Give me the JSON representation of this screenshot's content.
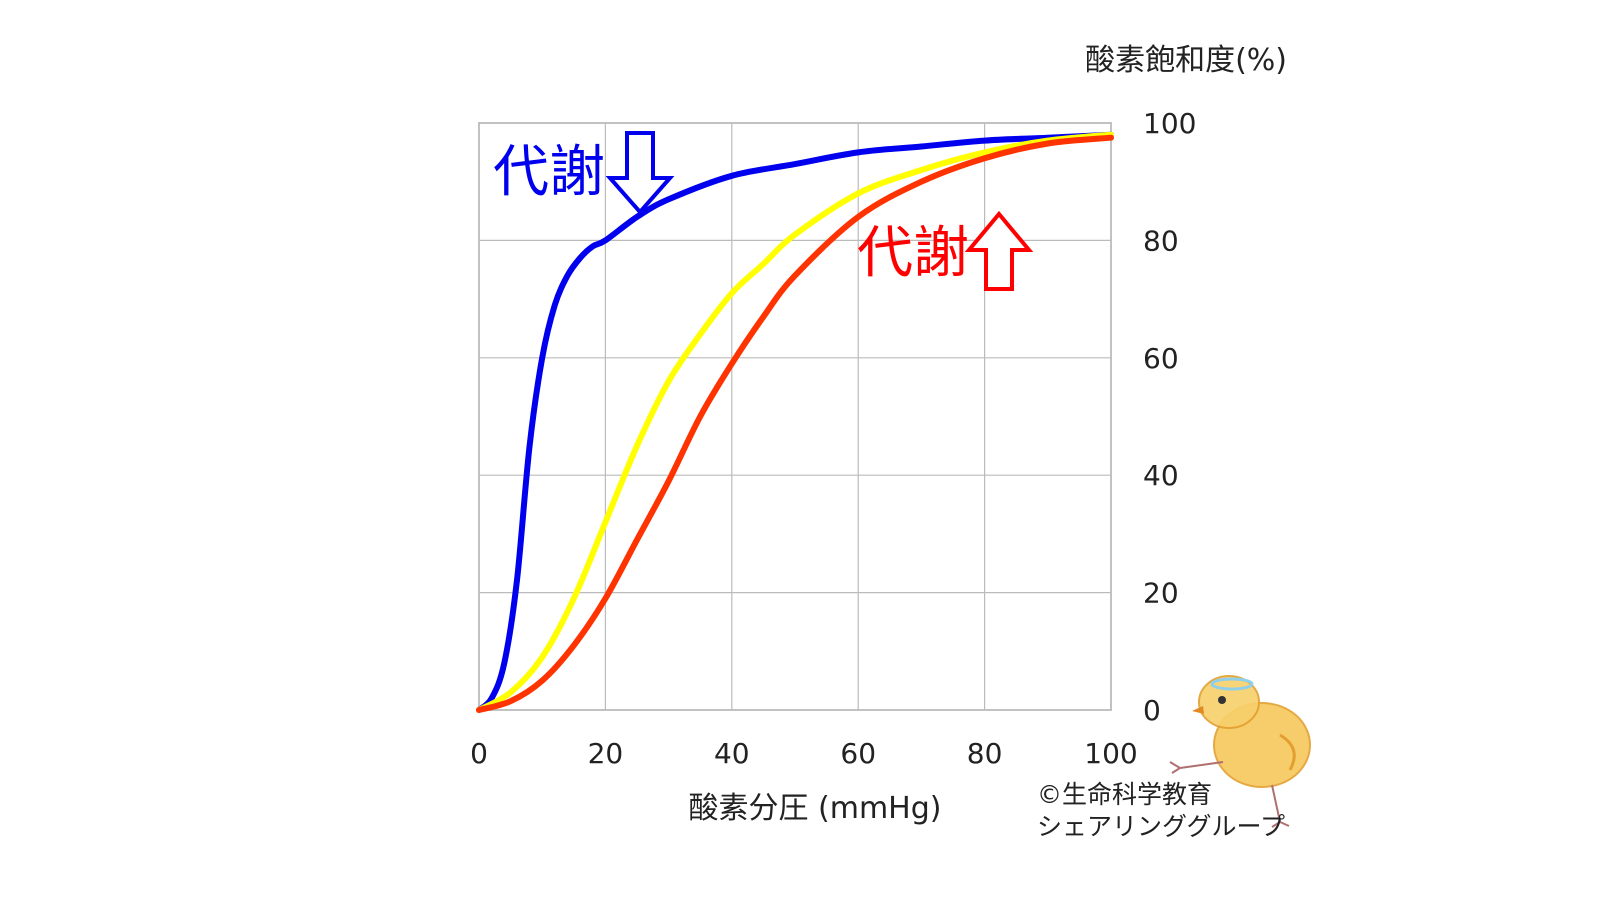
{
  "chart_data": {
    "type": "line",
    "xlabel": "酸素分圧 (mmHg)",
    "ylabel": "酸素飽和度(%)",
    "xlim": [
      0,
      100
    ],
    "ylim": [
      0,
      100
    ],
    "xticks": [
      "0",
      "20",
      "40",
      "60",
      "80",
      "100"
    ],
    "yticks": [
      "0",
      "20",
      "40",
      "60",
      "80",
      "100"
    ],
    "grid": true,
    "y_axis_side": "right",
    "series": [
      {
        "color": "#0000ee",
        "x": [
          0,
          2,
          4,
          6,
          8,
          10,
          12,
          14,
          16,
          18,
          20,
          25,
          30,
          40,
          50,
          60,
          70,
          80,
          90,
          100
        ],
        "y": [
          0,
          2,
          8,
          22,
          45,
          60,
          69,
          74,
          77,
          79,
          80,
          84,
          87,
          91,
          93,
          95,
          96,
          97,
          97.5,
          98
        ]
      },
      {
        "color": "#ffff00",
        "x": [
          0,
          5,
          10,
          15,
          20,
          25,
          30,
          35,
          40,
          45,
          50,
          60,
          70,
          80,
          90,
          100
        ],
        "y": [
          0,
          3,
          9,
          19,
          32,
          45,
          56,
          64,
          71,
          76,
          81,
          88,
          92,
          95,
          97,
          98
        ]
      },
      {
        "color": "#ff3300",
        "x": [
          0,
          5,
          10,
          15,
          20,
          25,
          30,
          35,
          40,
          45,
          50,
          60,
          70,
          80,
          90,
          100
        ],
        "y": [
          0,
          1.5,
          5,
          11,
          19,
          29,
          39,
          50,
          59,
          67,
          74,
          84,
          90,
          94,
          96.5,
          97.5
        ]
      }
    ],
    "annotations": [
      {
        "text": "代謝",
        "arrow": "down",
        "color": "#0000ee"
      },
      {
        "text": "代謝",
        "arrow": "up",
        "color": "#ff0000"
      }
    ]
  },
  "copyright": {
    "line1": "©生命科学教育",
    "line2": "シェアリンググループ"
  },
  "colors": {
    "grid": "#bbbbbb",
    "frame": "#999999",
    "text": "#222222"
  },
  "icons": {
    "mascot": "chick-drawing-icon"
  }
}
